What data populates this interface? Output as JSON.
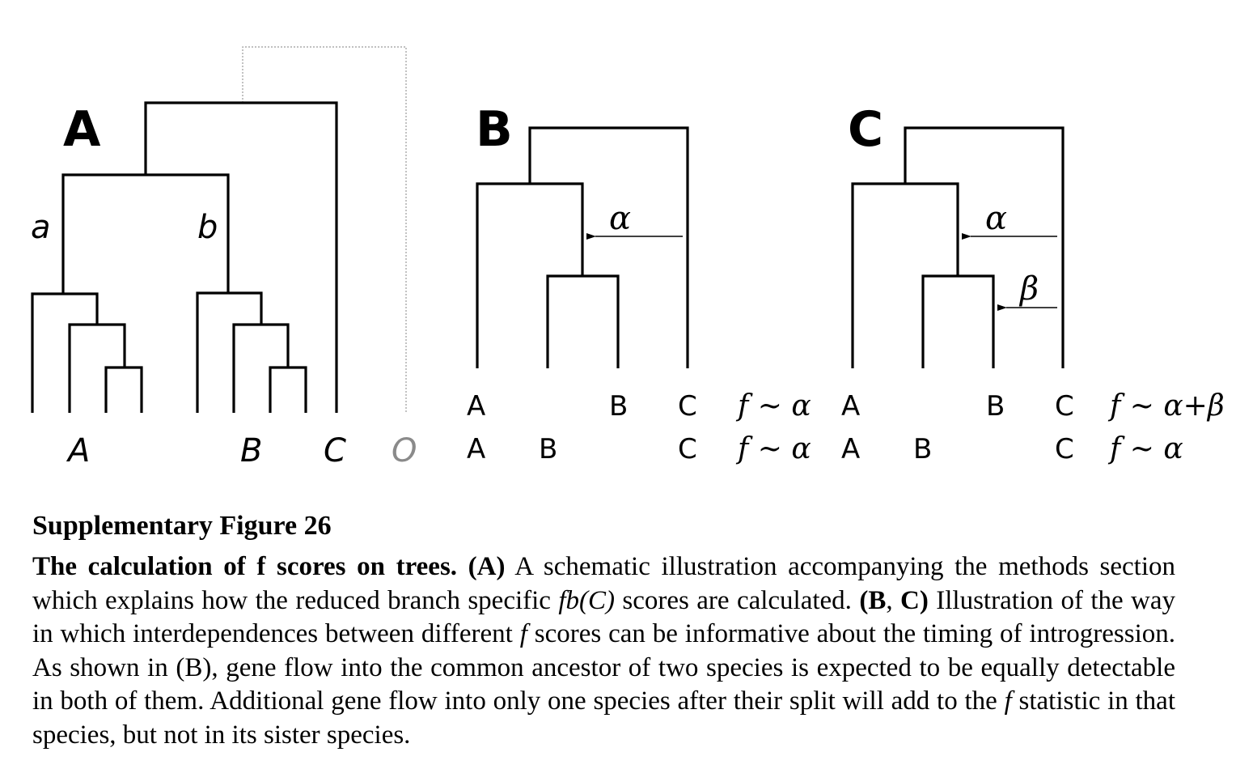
{
  "panels": {
    "A": {
      "letter": "A",
      "branch_a": "a",
      "branch_b": "b",
      "tips": [
        "A",
        "B",
        "C",
        "O"
      ]
    },
    "B": {
      "letter": "B",
      "arrow_label": "α",
      "row1": {
        "tips": [
          "A",
          "B",
          "C"
        ],
        "score": "f ~ α"
      },
      "row2": {
        "tips": [
          "A",
          "B",
          "C"
        ],
        "score": "f ~ α"
      }
    },
    "C": {
      "letter": "C",
      "arrow_label_1": "α",
      "arrow_label_2": "β",
      "row1": {
        "tips": [
          "A",
          "B",
          "C"
        ],
        "score": "f ~ α+β"
      },
      "row2": {
        "tips": [
          "A",
          "B",
          "C"
        ],
        "score": "f ~ α"
      }
    }
  },
  "caption": {
    "heading": "Supplementary Figure 26",
    "title": "The calculation of f scores on trees.",
    "labels": {
      "a": "(A)",
      "bc_open": "(",
      "b": "B",
      "comma": ", ",
      "c": "C",
      "bc_close": ")"
    },
    "text_1": " A schematic illustration accompanying the methods section which explains how the reduced branch specific ",
    "fb": "fb(C)",
    "text_2": " scores are calculated. ",
    "text_3": " Illustration of the way in which interdependences between different ",
    "f1": "f",
    "text_4": " scores can be informative about the timing of introgression. As shown in (B), gene flow into the common ancestor of two species is expected to be equally detectable in both of them. Additional gene flow into only one species after their split will add to the ",
    "f2": "f",
    "text_5": " statistic in that species, but not in its sister species."
  }
}
